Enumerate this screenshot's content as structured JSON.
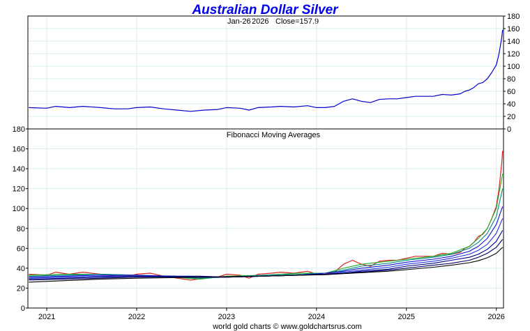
{
  "chart_data": [
    {
      "type": "line",
      "title": "Australian Dollar Silver",
      "subtitle_date": "Jan-26",
      "subtitle_year": "2026",
      "subtitle_close": "Close=157.9",
      "ylim": [
        0,
        180
      ],
      "y_ticks": [
        "0",
        "20",
        "40",
        "60",
        "80",
        "100",
        "120",
        "140",
        "160",
        "180"
      ],
      "series": [
        {
          "name": "Price",
          "color": "#0000cc",
          "x": [
            2020.8,
            2021.0,
            2021.1,
            2021.25,
            2021.4,
            2021.6,
            2021.75,
            2021.9,
            2022.0,
            2022.15,
            2022.3,
            2022.45,
            2022.6,
            2022.75,
            2022.9,
            2023.0,
            2023.15,
            2023.25,
            2023.35,
            2023.5,
            2023.6,
            2023.75,
            2023.9,
            2024.0,
            2024.1,
            2024.2,
            2024.25,
            2024.3,
            2024.4,
            2024.5,
            2024.6,
            2024.7,
            2024.8,
            2024.9,
            2025.0,
            2025.1,
            2025.2,
            2025.3,
            2025.4,
            2025.5,
            2025.55,
            2025.6,
            2025.65,
            2025.7,
            2025.75,
            2025.8,
            2025.85,
            2025.9,
            2025.95,
            2026.0,
            2026.03,
            2026.06,
            2026.07
          ],
          "values": [
            34,
            33,
            36,
            34,
            36,
            34,
            32,
            32,
            34,
            35,
            32,
            30,
            28,
            30,
            31,
            34,
            33,
            30,
            34,
            35,
            36,
            35,
            37,
            34,
            34,
            36,
            40,
            44,
            48,
            44,
            42,
            47,
            48,
            48,
            50,
            52,
            52,
            52,
            55,
            54,
            55,
            56,
            60,
            62,
            66,
            72,
            74,
            80,
            90,
            102,
            120,
            145,
            157.9
          ]
        }
      ]
    },
    {
      "type": "line",
      "title": "Fibonacci Moving Averages",
      "ylim": [
        0,
        180
      ],
      "y_ticks": [
        "0",
        "20",
        "40",
        "60",
        "80",
        "100",
        "120",
        "140",
        "160",
        "180"
      ],
      "x_tick_labels": [
        "2021",
        "2022",
        "2023",
        "2024",
        "2025",
        "2026"
      ],
      "x_tick_values": [
        2021,
        2022,
        2023,
        2024,
        2025,
        2026
      ],
      "xlim": [
        2020.79,
        2026.08
      ],
      "series": [
        {
          "name": "Price",
          "color": "#dd2222",
          "x": [
            2020.8,
            2021.0,
            2021.1,
            2021.25,
            2021.4,
            2021.6,
            2021.75,
            2021.9,
            2022.0,
            2022.15,
            2022.3,
            2022.45,
            2022.6,
            2022.75,
            2022.9,
            2023.0,
            2023.15,
            2023.25,
            2023.35,
            2023.5,
            2023.6,
            2023.75,
            2023.9,
            2024.0,
            2024.1,
            2024.2,
            2024.25,
            2024.3,
            2024.4,
            2024.5,
            2024.6,
            2024.7,
            2024.8,
            2024.9,
            2025.0,
            2025.1,
            2025.2,
            2025.3,
            2025.4,
            2025.5,
            2025.55,
            2025.6,
            2025.65,
            2025.7,
            2025.75,
            2025.8,
            2025.85,
            2025.9,
            2025.95,
            2026.0,
            2026.03,
            2026.06,
            2026.07
          ],
          "values": [
            34,
            33,
            36,
            34,
            36,
            34,
            32,
            32,
            34,
            35,
            32,
            30,
            28,
            30,
            31,
            34,
            33,
            30,
            34,
            35,
            36,
            35,
            37,
            34,
            34,
            36,
            40,
            44,
            48,
            44,
            42,
            47,
            48,
            48,
            50,
            52,
            52,
            52,
            55,
            54,
            55,
            56,
            60,
            62,
            66,
            72,
            74,
            80,
            90,
            102,
            120,
            145,
            157.9
          ]
        },
        {
          "name": "MA green",
          "color": "#22aa22",
          "x": [
            2020.8,
            2021.2,
            2021.6,
            2022.0,
            2022.4,
            2022.7,
            2023.0,
            2023.4,
            2023.8,
            2024.1,
            2024.3,
            2024.5,
            2024.8,
            2025.0,
            2025.3,
            2025.5,
            2025.7,
            2025.8,
            2025.9,
            2026.0,
            2026.07
          ],
          "values": [
            33,
            34,
            34,
            33,
            31,
            29,
            32,
            33,
            35,
            35,
            40,
            44,
            47,
            49,
            52,
            55,
            62,
            70,
            80,
            100,
            135
          ]
        },
        {
          "name": "MA teal",
          "color": "#008888",
          "x": [
            2020.8,
            2021.2,
            2021.6,
            2022.0,
            2022.4,
            2022.7,
            2023.0,
            2023.4,
            2023.8,
            2024.1,
            2024.3,
            2024.5,
            2024.8,
            2025.0,
            2025.3,
            2025.5,
            2025.7,
            2025.8,
            2025.9,
            2026.0,
            2026.07
          ],
          "values": [
            32,
            33,
            34,
            33,
            31,
            30,
            31,
            33,
            34,
            35,
            38,
            42,
            45,
            48,
            51,
            54,
            60,
            66,
            75,
            92,
            120
          ]
        },
        {
          "name": "MA blue 1",
          "color": "#1111cc",
          "x": [
            2020.8,
            2021.2,
            2021.6,
            2022.0,
            2022.4,
            2022.7,
            2023.0,
            2023.4,
            2023.8,
            2024.1,
            2024.3,
            2024.5,
            2024.8,
            2025.0,
            2025.3,
            2025.5,
            2025.7,
            2025.8,
            2025.9,
            2026.0,
            2026.07
          ],
          "values": [
            31,
            32,
            33,
            33,
            32,
            31,
            31,
            32,
            33,
            35,
            37,
            40,
            43,
            46,
            49,
            52,
            57,
            62,
            70,
            84,
            102
          ]
        },
        {
          "name": "MA blue 2",
          "color": "#2233dd",
          "x": [
            2020.8,
            2021.2,
            2021.6,
            2022.0,
            2022.4,
            2022.7,
            2023.0,
            2023.4,
            2023.8,
            2024.1,
            2024.3,
            2024.5,
            2024.8,
            2025.0,
            2025.3,
            2025.5,
            2025.7,
            2025.8,
            2025.9,
            2026.0,
            2026.07
          ],
          "values": [
            30,
            31,
            32,
            32,
            32,
            31,
            31,
            32,
            33,
            34,
            36,
            38,
            41,
            44,
            47,
            50,
            54,
            58,
            64,
            75,
            90
          ]
        },
        {
          "name": "MA navy",
          "color": "#000088",
          "x": [
            2020.8,
            2021.2,
            2021.6,
            2022.0,
            2022.4,
            2022.7,
            2023.0,
            2023.4,
            2023.8,
            2024.1,
            2024.3,
            2024.5,
            2024.8,
            2025.0,
            2025.3,
            2025.5,
            2025.7,
            2025.8,
            2025.9,
            2026.0,
            2026.07
          ],
          "values": [
            29,
            30,
            31,
            32,
            32,
            32,
            31,
            32,
            33,
            34,
            35,
            37,
            39,
            42,
            45,
            48,
            51,
            54,
            59,
            67,
            78
          ]
        },
        {
          "name": "MA dark blue",
          "color": "#000066",
          "x": [
            2020.8,
            2021.2,
            2021.6,
            2022.0,
            2022.4,
            2022.7,
            2023.0,
            2023.4,
            2023.8,
            2024.1,
            2024.3,
            2024.5,
            2024.8,
            2025.0,
            2025.3,
            2025.5,
            2025.7,
            2025.8,
            2025.9,
            2026.0,
            2026.07
          ],
          "values": [
            28,
            29,
            30,
            31,
            31,
            31,
            31,
            32,
            33,
            34,
            35,
            36,
            38,
            40,
            43,
            45,
            48,
            51,
            55,
            61,
            69
          ]
        },
        {
          "name": "MA black",
          "color": "#000000",
          "x": [
            2020.8,
            2021.2,
            2021.6,
            2022.0,
            2022.4,
            2022.7,
            2023.0,
            2023.4,
            2023.8,
            2024.1,
            2024.3,
            2024.5,
            2024.8,
            2025.0,
            2025.3,
            2025.5,
            2025.7,
            2025.8,
            2025.9,
            2026.0,
            2026.07
          ],
          "values": [
            26,
            27.5,
            29,
            30,
            30.5,
            31,
            31.5,
            32,
            33,
            33.5,
            34.5,
            35.5,
            37,
            38.5,
            41,
            43,
            45.5,
            47.5,
            50.5,
            55,
            61
          ]
        }
      ]
    }
  ],
  "footer": "world gold charts © www.goldchartsrus.com"
}
